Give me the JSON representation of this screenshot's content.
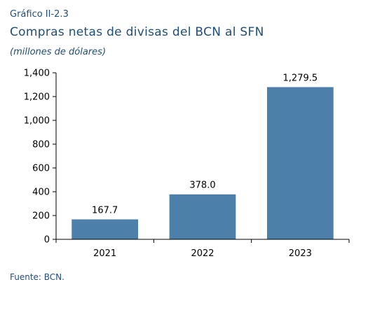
{
  "header": {
    "figure_number": "Gráfico II-2.3",
    "title": "Compras netas de divisas del BCN al SFN",
    "subtitle": "(millones de dólares)"
  },
  "footer": {
    "source": "Fuente: BCN."
  },
  "colors": {
    "bar": "#4d7fab",
    "text": "#1f4e79",
    "axis": "#000000"
  },
  "chart_data": {
    "type": "bar",
    "title": "Compras netas de divisas del BCN al SFN",
    "subtitle": "(millones de dólares)",
    "categories": [
      "2021",
      "2022",
      "2023"
    ],
    "values": [
      167.7,
      378.0,
      1279.5
    ],
    "value_labels": [
      "167.7",
      "378.0",
      "1,279.5"
    ],
    "ylim": [
      0,
      1400
    ],
    "yticks": [
      0,
      200,
      400,
      600,
      800,
      1000,
      1200,
      1400
    ],
    "ytick_labels": [
      "0",
      "200",
      "400",
      "600",
      "800",
      "1,000",
      "1,200",
      "1,400"
    ],
    "xlabel": "",
    "ylabel": "",
    "grid": false,
    "legend": "none"
  }
}
